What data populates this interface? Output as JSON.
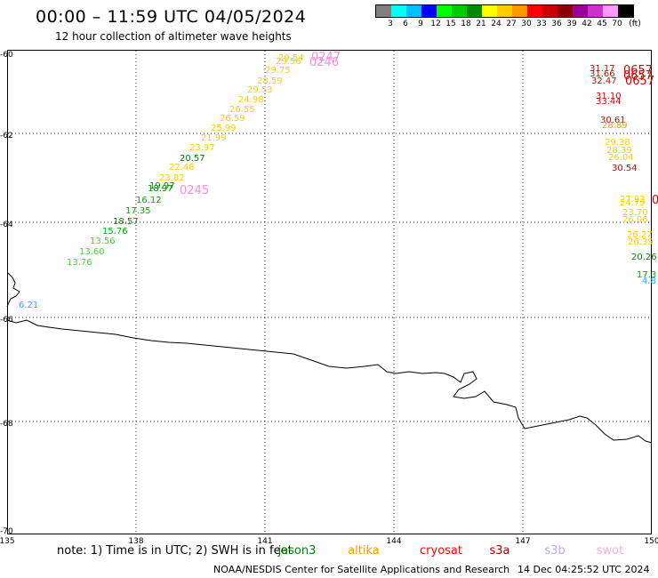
{
  "title": "00:00 – 11:59 UTC 04/05/2024",
  "subtitle": "12 hour collection of altimeter wave heights",
  "legend": {
    "colors": [
      "#808080",
      "#00ffff",
      "#00bfff",
      "#0000ff",
      "#00ff00",
      "#00cc00",
      "#008800",
      "#ffff00",
      "#ffcc00",
      "#ff9900",
      "#ff0000",
      "#cc0000",
      "#880000",
      "#990099",
      "#cc33cc",
      "#ff99ff",
      "#000000"
    ],
    "labels": [
      "3",
      "6",
      "9",
      "12",
      "15",
      "18",
      "21",
      "24",
      "27",
      "30",
      "33",
      "36",
      "39",
      "42",
      "45",
      "70",
      "(ft)"
    ]
  },
  "y_axis": {
    "labels": [
      "-60",
      "-62",
      "-64",
      "-66",
      "-68",
      "-70"
    ]
  },
  "x_axis": {
    "labels": [
      "135",
      "138",
      "141",
      "144",
      "147",
      "150"
    ]
  },
  "track_left": {
    "readings": [
      {
        "v": "29.54",
        "c": "#ffcc00"
      },
      {
        "v": "29.56",
        "c": "#ffcc00"
      },
      {
        "v": "29.75",
        "c": "#ffcc00"
      },
      {
        "v": "28.59",
        "c": "#ffcc00"
      },
      {
        "v": "29.53",
        "c": "#ffcc00"
      },
      {
        "v": "24.98",
        "c": "#ffcc00"
      },
      {
        "v": "26.55",
        "c": "#ffcc00"
      },
      {
        "v": "26.59",
        "c": "#ffcc00"
      },
      {
        "v": "25.99",
        "c": "#ffcc00"
      },
      {
        "v": "21.99",
        "c": "#ffcc00"
      },
      {
        "v": "23.97",
        "c": "#ffcc00"
      },
      {
        "v": "20.57",
        "c": "#008800"
      },
      {
        "v": "22.48",
        "c": "#ffcc00"
      },
      {
        "v": "23.82",
        "c": "#ffcc00"
      },
      {
        "v": "18.97",
        "c": "#008800"
      },
      {
        "v": "19.97",
        "c": "#008800"
      },
      {
        "v": "16.12",
        "c": "#00aa00"
      },
      {
        "v": "17.35",
        "c": "#00aa00"
      },
      {
        "v": "18.57",
        "c": "#008800"
      },
      {
        "v": "15.76",
        "c": "#00aa00"
      },
      {
        "v": "13.56",
        "c": "#33dd33"
      },
      {
        "v": "13.60",
        "c": "#33dd33"
      },
      {
        "v": "13.76",
        "c": "#33dd33"
      },
      {
        "v": "6.21",
        "c": "#00bfff"
      }
    ],
    "times": [
      {
        "v": "0247",
        "c": "#ff88dd"
      },
      {
        "v": "0246",
        "c": "#ff88dd"
      },
      {
        "v": "0245",
        "c": "#ff88dd"
      }
    ]
  },
  "track_right": {
    "readings": [
      {
        "v": "31.17",
        "c": "#dd0000"
      },
      {
        "v": "31.66",
        "c": "#dd0000"
      },
      {
        "v": "32.47",
        "c": "#dd0000"
      },
      {
        "v": "31.10",
        "c": "#dd0000"
      },
      {
        "v": "33.44",
        "c": "#dd0000"
      },
      {
        "v": "30.61",
        "c": "#dd0000"
      },
      {
        "v": "28.89",
        "c": "#ff9900"
      },
      {
        "v": "29.38",
        "c": "#ffcc00"
      },
      {
        "v": "28.39",
        "c": "#ffcc00"
      },
      {
        "v": "26.04",
        "c": "#ffcc00"
      },
      {
        "v": "30.54",
        "c": "#dd0000"
      },
      {
        "v": "27.93",
        "c": "#ffcc00"
      },
      {
        "v": "24.79",
        "c": "#ffcc00"
      },
      {
        "v": "23.70",
        "c": "#ffcc00"
      },
      {
        "v": "26.06",
        "c": "#ffcc00"
      },
      {
        "v": "26.27",
        "c": "#ffcc00"
      },
      {
        "v": "26.39",
        "c": "#ffcc00"
      },
      {
        "v": "20.26",
        "c": "#008800"
      },
      {
        "v": "17.3",
        "c": "#00aa00"
      },
      {
        "v": "4.8",
        "c": "#00bfff"
      }
    ],
    "times": [
      {
        "v": "0657",
        "c": "#dd0000"
      },
      {
        "v": "0657",
        "c": "#dd0000"
      },
      {
        "v": "0657",
        "c": "#dd0000"
      },
      {
        "v": "0",
        "c": "#dd0000"
      }
    ]
  },
  "note": "note: 1) Time is in UTC; 2) SWH is in feet",
  "satellites": [
    {
      "name": "jason3",
      "color": "#008800"
    },
    {
      "name": "altika",
      "color": "#ff9900"
    },
    {
      "name": "cryosat",
      "color": "#ff0000"
    },
    {
      "name": "s3a",
      "color": "#aa0000"
    },
    {
      "name": "s3b",
      "color": "#bbaaee"
    },
    {
      "name": "swot",
      "color": "#ffaadd"
    }
  ],
  "footer": "NOAA/NESDIS Center for Satellite Applications and Research",
  "footer_date": "14 Dec 04:25:52 UTC 2024"
}
